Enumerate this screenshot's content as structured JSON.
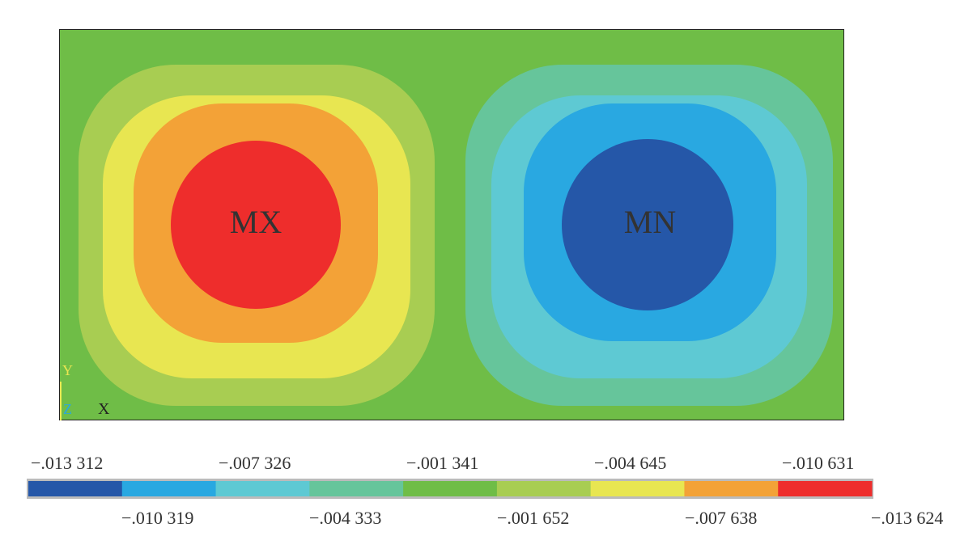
{
  "plot": {
    "max_label": "MX",
    "min_label": "MN",
    "axis_y": "Y",
    "axis_z": "Z",
    "axis_x": "X"
  },
  "legend": {
    "colors": [
      "#2557a8",
      "#29a8e1",
      "#5ec9d3",
      "#66c59b",
      "#6fbd47",
      "#a8cd52",
      "#e8e651",
      "#f3a237",
      "#ee2d2c"
    ],
    "top_labels": [
      "−.013 312",
      "−.007 326",
      "−.001 341",
      "−.004 645",
      "−.010 631"
    ],
    "bottom_labels": [
      "−.010 319",
      "−.004 333",
      "−.001 652",
      "−.007 638",
      "−.013 624"
    ]
  },
  "colors": {
    "background_field": "#6fbd47",
    "red": "#ee2d2c",
    "orange": "#f3a237",
    "yellow": "#e8e651",
    "yellow_green": "#a8cd52",
    "teal": "#66c59b",
    "cyan": "#5ec9d3",
    "blue": "#29a8e1",
    "dark_blue": "#2557a8"
  }
}
